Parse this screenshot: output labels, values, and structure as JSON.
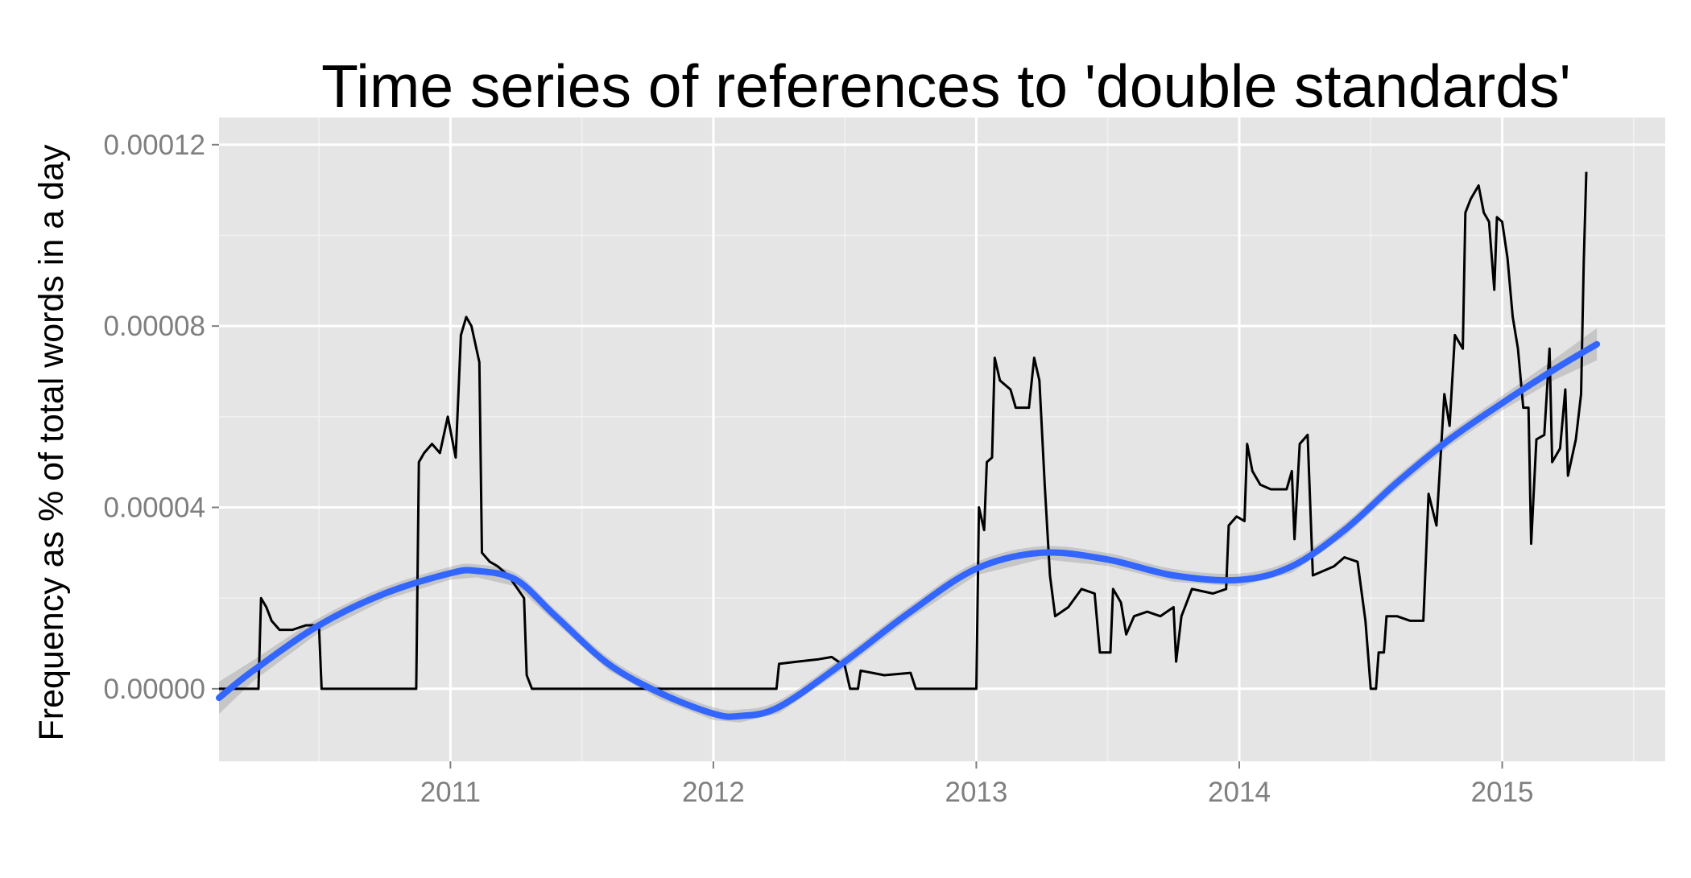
{
  "chart_data": {
    "type": "line",
    "title": "Time series of references to 'double standards'",
    "xlabel": "",
    "ylabel": "Frequency as % of total words in a day",
    "xlim": [
      2010.12,
      2015.62
    ],
    "ylim": [
      -1.6e-05,
      0.000126
    ],
    "x_ticks": [
      2011,
      2012,
      2013,
      2014,
      2015
    ],
    "x_tick_labels": [
      "2011",
      "2012",
      "2013",
      "2014",
      "2015"
    ],
    "y_ticks": [
      0.0,
      4e-05,
      8e-05,
      0.00012
    ],
    "y_tick_labels": [
      "0.00000",
      "0.00004",
      "0.00008",
      "0.00012"
    ],
    "grid": true,
    "legend": "none",
    "colors": {
      "panel": "#e5e5e5",
      "grid_major": "#ffffff",
      "grid_minor": "#f2f2f2",
      "series": "#000000",
      "smooth": "#3366ff",
      "ribbon": "#999999"
    },
    "series": [
      {
        "style": "line",
        "points": [
          [
            2010.12,
            0.0
          ],
          [
            2010.26,
            0.0
          ],
          [
            2010.27,
            0.0
          ],
          [
            2010.28,
            2e-05
          ],
          [
            2010.3,
            1.8e-05
          ],
          [
            2010.32,
            1.5e-05
          ],
          [
            2010.35,
            1.3e-05
          ],
          [
            2010.4,
            1.3e-05
          ],
          [
            2010.45,
            1.4e-05
          ],
          [
            2010.5,
            1.4e-05
          ],
          [
            2010.51,
            0.0
          ],
          [
            2010.87,
            0.0
          ],
          [
            2010.88,
            5e-05
          ],
          [
            2010.9,
            5.2e-05
          ],
          [
            2010.93,
            5.4e-05
          ],
          [
            2010.96,
            5.2e-05
          ],
          [
            2010.99,
            6e-05
          ],
          [
            2011.02,
            5.1e-05
          ],
          [
            2011.04,
            7.8e-05
          ],
          [
            2011.06,
            8.2e-05
          ],
          [
            2011.08,
            8e-05
          ],
          [
            2011.11,
            7.2e-05
          ],
          [
            2011.12,
            3e-05
          ],
          [
            2011.15,
            2.8e-05
          ],
          [
            2011.18,
            2.7e-05
          ],
          [
            2011.22,
            2.5e-05
          ],
          [
            2011.28,
            2e-05
          ],
          [
            2011.29,
            3e-06
          ],
          [
            2011.31,
            0.0
          ],
          [
            2012.24,
            0.0
          ],
          [
            2012.25,
            5.5e-06
          ],
          [
            2012.32,
            6e-06
          ],
          [
            2012.4,
            6.5e-06
          ],
          [
            2012.45,
            7e-06
          ],
          [
            2012.5,
            5e-06
          ],
          [
            2012.52,
            0.0
          ],
          [
            2012.55,
            0.0
          ],
          [
            2012.56,
            4e-06
          ],
          [
            2012.65,
            3e-06
          ],
          [
            2012.75,
            3.5e-06
          ],
          [
            2012.77,
            0.0
          ],
          [
            2013.0,
            0.0
          ],
          [
            2013.01,
            4e-05
          ],
          [
            2013.03,
            3.5e-05
          ],
          [
            2013.04,
            5e-05
          ],
          [
            2013.06,
            5.1e-05
          ],
          [
            2013.07,
            7.3e-05
          ],
          [
            2013.09,
            6.8e-05
          ],
          [
            2013.13,
            6.6e-05
          ],
          [
            2013.15,
            6.2e-05
          ],
          [
            2013.2,
            6.2e-05
          ],
          [
            2013.22,
            7.3e-05
          ],
          [
            2013.24,
            6.8e-05
          ],
          [
            2013.26,
            4.5e-05
          ],
          [
            2013.28,
            2.5e-05
          ],
          [
            2013.3,
            1.6e-05
          ],
          [
            2013.35,
            1.8e-05
          ],
          [
            2013.4,
            2.2e-05
          ],
          [
            2013.45,
            2.1e-05
          ],
          [
            2013.47,
            8e-06
          ],
          [
            2013.51,
            8e-06
          ],
          [
            2013.52,
            2.2e-05
          ],
          [
            2013.55,
            1.9e-05
          ],
          [
            2013.57,
            1.2e-05
          ],
          [
            2013.6,
            1.6e-05
          ],
          [
            2013.65,
            1.7e-05
          ],
          [
            2013.7,
            1.6e-05
          ],
          [
            2013.75,
            1.8e-05
          ],
          [
            2013.76,
            6e-06
          ],
          [
            2013.78,
            1.6e-05
          ],
          [
            2013.82,
            2.2e-05
          ],
          [
            2013.9,
            2.1e-05
          ],
          [
            2013.95,
            2.2e-05
          ],
          [
            2013.96,
            3.6e-05
          ],
          [
            2013.99,
            3.8e-05
          ],
          [
            2014.02,
            3.7e-05
          ],
          [
            2014.03,
            5.4e-05
          ],
          [
            2014.05,
            4.8e-05
          ],
          [
            2014.08,
            4.5e-05
          ],
          [
            2014.12,
            4.4e-05
          ],
          [
            2014.18,
            4.4e-05
          ],
          [
            2014.2,
            4.8e-05
          ],
          [
            2014.21,
            3.3e-05
          ],
          [
            2014.23,
            5.4e-05
          ],
          [
            2014.26,
            5.6e-05
          ],
          [
            2014.28,
            2.5e-05
          ],
          [
            2014.32,
            2.6e-05
          ],
          [
            2014.36,
            2.7e-05
          ],
          [
            2014.4,
            2.9e-05
          ],
          [
            2014.45,
            2.8e-05
          ],
          [
            2014.48,
            1.5e-05
          ],
          [
            2014.5,
            0.0
          ],
          [
            2014.52,
            0.0
          ],
          [
            2014.53,
            8e-06
          ],
          [
            2014.55,
            8e-06
          ],
          [
            2014.56,
            1.6e-05
          ],
          [
            2014.6,
            1.6e-05
          ],
          [
            2014.65,
            1.5e-05
          ],
          [
            2014.7,
            1.5e-05
          ],
          [
            2014.72,
            4.3e-05
          ],
          [
            2014.75,
            3.6e-05
          ],
          [
            2014.78,
            6.5e-05
          ],
          [
            2014.8,
            5.8e-05
          ],
          [
            2014.82,
            7.8e-05
          ],
          [
            2014.85,
            7.5e-05
          ],
          [
            2014.86,
            0.000105
          ],
          [
            2014.88,
            0.000108
          ],
          [
            2014.91,
            0.000111
          ],
          [
            2014.93,
            0.000105
          ],
          [
            2014.95,
            0.000103
          ],
          [
            2014.97,
            8.8e-05
          ],
          [
            2014.98,
            0.000104
          ],
          [
            2015.0,
            0.000103
          ],
          [
            2015.02,
            9.5e-05
          ],
          [
            2015.04,
            8.2e-05
          ],
          [
            2015.06,
            7.5e-05
          ],
          [
            2015.08,
            6.2e-05
          ],
          [
            2015.1,
            6.2e-05
          ],
          [
            2015.11,
            3.2e-05
          ],
          [
            2015.13,
            5.5e-05
          ],
          [
            2015.16,
            5.6e-05
          ],
          [
            2015.18,
            7.5e-05
          ],
          [
            2015.19,
            5e-05
          ],
          [
            2015.22,
            5.3e-05
          ],
          [
            2015.24,
            6.6e-05
          ],
          [
            2015.25,
            4.7e-05
          ],
          [
            2015.28,
            5.5e-05
          ],
          [
            2015.3,
            6.5e-05
          ],
          [
            2015.31,
            9.4e-05
          ],
          [
            2015.32,
            0.000114
          ]
        ]
      },
      {
        "style": "smooth",
        "points": [
          [
            2010.12,
            -2e-06
          ],
          [
            2010.25,
            4e-06
          ],
          [
            2010.5,
            1.4e-05
          ],
          [
            2010.75,
            2.1e-05
          ],
          [
            2011.0,
            2.55e-05
          ],
          [
            2011.1,
            2.6e-05
          ],
          [
            2011.25,
            2.4e-05
          ],
          [
            2011.4,
            1.6e-05
          ],
          [
            2011.6,
            5.5e-06
          ],
          [
            2011.8,
            -1e-06
          ],
          [
            2012.0,
            -5.5e-06
          ],
          [
            2012.1,
            -6e-06
          ],
          [
            2012.25,
            -4e-06
          ],
          [
            2012.5,
            6e-06
          ],
          [
            2012.75,
            1.7e-05
          ],
          [
            2013.0,
            2.65e-05
          ],
          [
            2013.25,
            3e-05
          ],
          [
            2013.5,
            2.85e-05
          ],
          [
            2013.75,
            2.5e-05
          ],
          [
            2014.0,
            2.4e-05
          ],
          [
            2014.2,
            2.7e-05
          ],
          [
            2014.4,
            3.5e-05
          ],
          [
            2014.6,
            4.55e-05
          ],
          [
            2014.8,
            5.5e-05
          ],
          [
            2015.0,
            6.3e-05
          ],
          [
            2015.2,
            7.05e-05
          ],
          [
            2015.36,
            7.6e-05
          ]
        ]
      }
    ]
  }
}
